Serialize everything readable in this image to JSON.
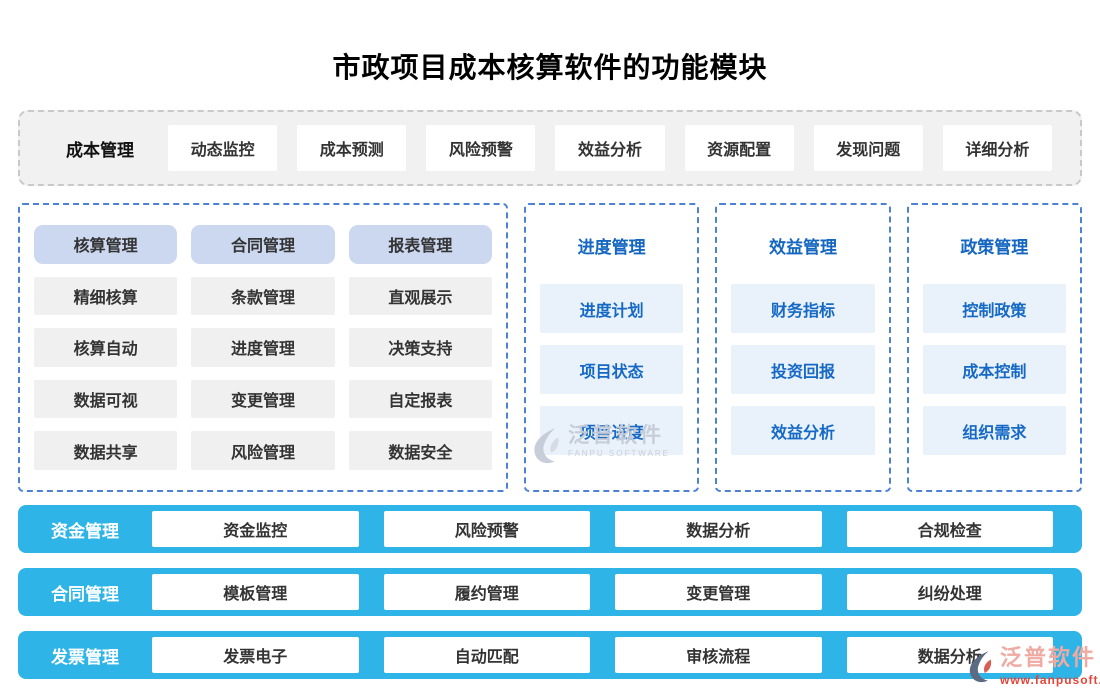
{
  "title": "市政项目成本核算软件的功能模块",
  "top_bar": {
    "label": "成本管理",
    "items": [
      "动态监控",
      "成本预测",
      "风险预警",
      "效益分析",
      "资源配置",
      "发现问题",
      "详细分析"
    ]
  },
  "left_panel": {
    "headers": [
      "核算管理",
      "合同管理",
      "报表管理"
    ],
    "rows": [
      [
        "精细核算",
        "条款管理",
        "直观展示"
      ],
      [
        "核算自动",
        "进度管理",
        "决策支持"
      ],
      [
        "数据可视",
        "变更管理",
        "自定报表"
      ],
      [
        "数据共享",
        "风险管理",
        "数据安全"
      ]
    ]
  },
  "panels": [
    {
      "title": "进度管理",
      "items": [
        "进度计划",
        "项目状态",
        "项目进度"
      ]
    },
    {
      "title": "效益管理",
      "items": [
        "财务指标",
        "投资回报",
        "效益分析"
      ]
    },
    {
      "title": "政策管理",
      "items": [
        "控制政策",
        "成本控制",
        "组织需求"
      ]
    }
  ],
  "bottom_bars": [
    {
      "label": "资金管理",
      "items": [
        "资金监控",
        "风险预警",
        "数据分析",
        "合规检查"
      ]
    },
    {
      "label": "合同管理",
      "items": [
        "模板管理",
        "履约管理",
        "变更管理",
        "纠纷处理"
      ]
    },
    {
      "label": "发票管理",
      "items": [
        "发票电子",
        "自动匹配",
        "审核流程",
        "数据分析"
      ]
    }
  ],
  "watermarks": {
    "center": {
      "name": "泛普软件",
      "sub": "FANPU SOFTWARE"
    },
    "corner": {
      "name": "泛普软件",
      "url": "www.fanpusoft.com"
    }
  },
  "colors": {
    "bar_cyan": "#2fb4e8",
    "dashed_blue": "#4d82d2",
    "dashed_gray": "#c9c9c9",
    "header_fill": "#ccd7f0",
    "sub_fill": "#f0f0f1",
    "light_blue_fill": "#e9f1fa",
    "blue_text": "#1466c0",
    "watermark_pink": "#efaaa2",
    "watermark_red": "#e2463a"
  }
}
